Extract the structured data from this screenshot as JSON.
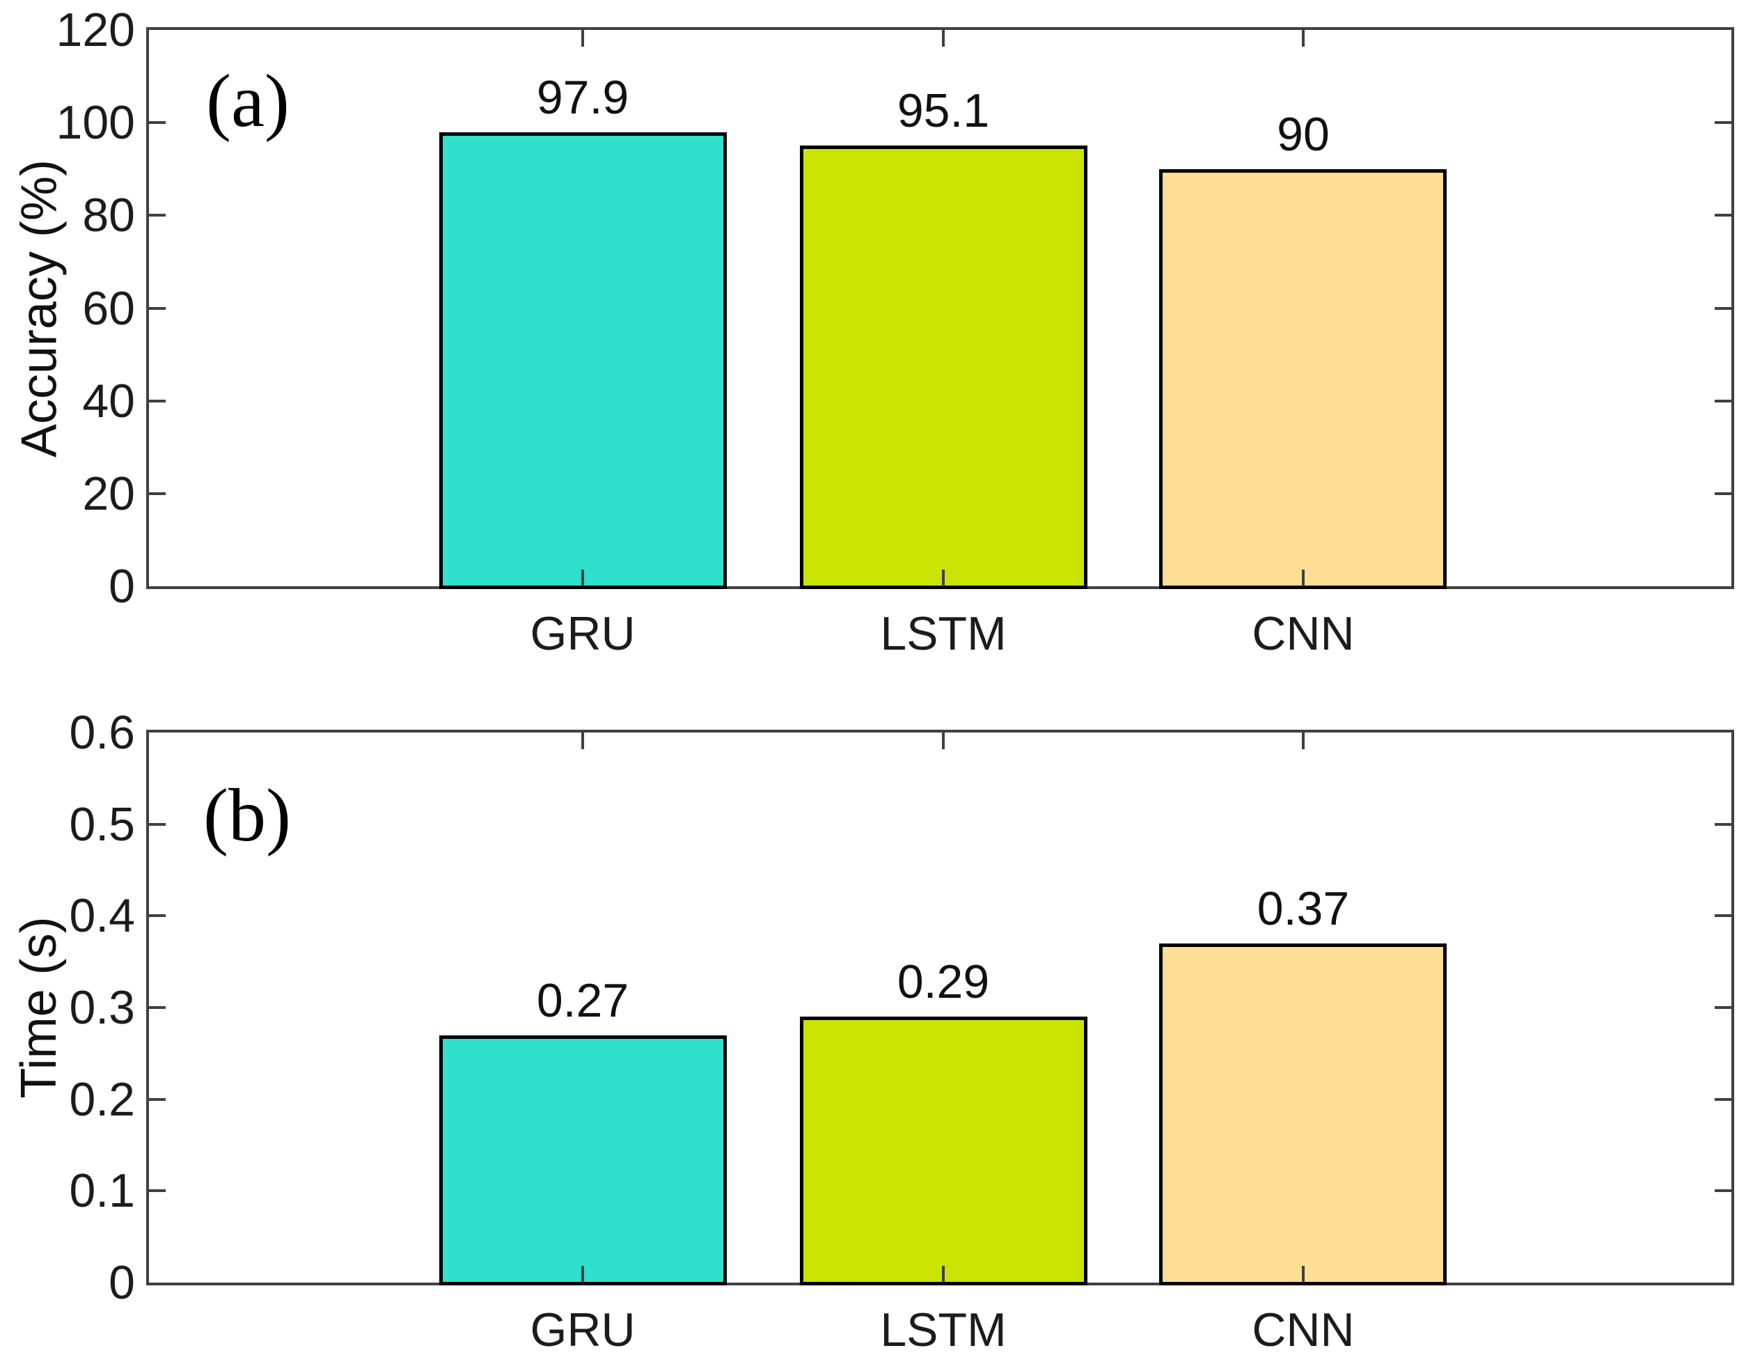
{
  "figure": {
    "background": "#ffffff"
  },
  "style": {
    "axis_color": "#404040",
    "bar_edge_color": "#000000",
    "text_color": "#1c1c1c"
  },
  "chart_data": [
    {
      "type": "bar",
      "panel_label": "(a)",
      "title": "",
      "xlabel": "",
      "ylabel": "Accuracy (%)",
      "categories": [
        "GRU",
        "LSTM",
        "CNN"
      ],
      "values": [
        97.9,
        95.1,
        90
      ],
      "value_labels": [
        "97.9",
        "95.1",
        "90"
      ],
      "bar_colors": [
        "#2FE0CC",
        "#CBE301",
        "#FDDE92"
      ],
      "ylim": [
        0,
        120
      ],
      "yticks": [
        0,
        20,
        40,
        60,
        80,
        100,
        120
      ],
      "ytick_labels": [
        "0",
        "20",
        "40",
        "60",
        "80",
        "100",
        "120"
      ],
      "grid": false,
      "legend": null
    },
    {
      "type": "bar",
      "panel_label": "(b)",
      "title": "",
      "xlabel": "",
      "ylabel": "Time (s)",
      "categories": [
        "GRU",
        "LSTM",
        "CNN"
      ],
      "values": [
        0.27,
        0.29,
        0.37
      ],
      "value_labels": [
        "0.27",
        "0.29",
        "0.37"
      ],
      "bar_colors": [
        "#2FE0CC",
        "#CBE301",
        "#FDDE92"
      ],
      "ylim": [
        0,
        0.6
      ],
      "yticks": [
        0,
        0.1,
        0.2,
        0.3,
        0.4,
        0.5,
        0.6
      ],
      "ytick_labels": [
        "0",
        "0.1",
        "0.2",
        "0.3",
        "0.4",
        "0.5",
        "0.6"
      ],
      "grid": false,
      "legend": null
    }
  ]
}
